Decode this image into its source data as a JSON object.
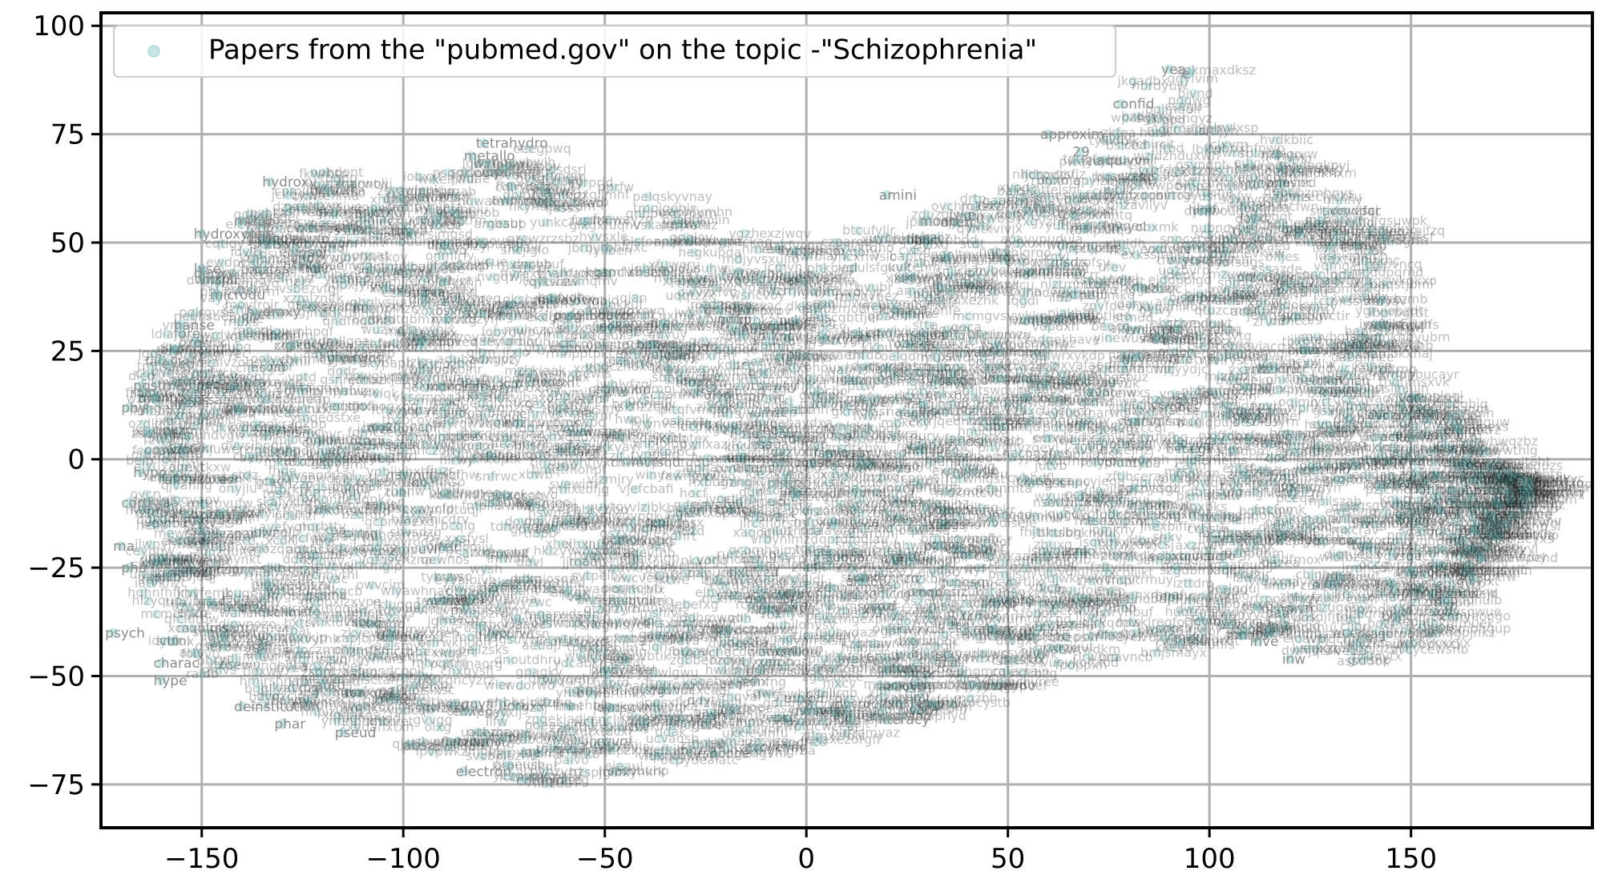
{
  "chart_data": {
    "type": "scatter",
    "title": "",
    "xlabel": "",
    "ylabel": "",
    "xlim": [
      -175,
      195
    ],
    "ylim": [
      -85,
      103
    ],
    "grid": true,
    "legend_position": "top-left",
    "x_ticks": [
      -150,
      -100,
      -50,
      0,
      50,
      100,
      150
    ],
    "x_tick_labels": [
      "−150",
      "−100",
      "−50",
      "0",
      "50",
      "100",
      "150"
    ],
    "y_ticks": [
      100,
      75,
      50,
      25,
      0,
      -25,
      -50,
      -75
    ],
    "y_tick_labels": [
      "100",
      "75",
      "50",
      "25",
      "0",
      "−25",
      "−50",
      "−75"
    ],
    "marker_color": "#5fb8b8",
    "grid_color": "#b0b0b0",
    "series": [
      {
        "name": "Papers from the \"pubmed.gov\" on the topic -\"Schizophrenia\"",
        "point_count_note": "dense cloud; representative labeled points below",
        "points": [
          {
            "x": -80,
            "y": 73,
            "label": "tetrahydro"
          },
          {
            "x": -83,
            "y": 70,
            "label": "metallo"
          },
          {
            "x": -75,
            "y": 67,
            "label": "hispan"
          },
          {
            "x": -133,
            "y": 64,
            "label": "hydroxy"
          },
          {
            "x": -140,
            "y": 55,
            "label": "misop"
          },
          {
            "x": -138,
            "y": 52,
            "label": "oleo"
          },
          {
            "x": -150,
            "y": 52,
            "label": "hydroxyphe"
          },
          {
            "x": -150,
            "y": 44,
            "label": "lyse"
          },
          {
            "x": -150,
            "y": 43,
            "label": "deoxy"
          },
          {
            "x": -146,
            "y": 38,
            "label": "microdu"
          },
          {
            "x": -137,
            "y": 34,
            "label": "hydroxy"
          },
          {
            "x": -155,
            "y": 31,
            "label": "hanse"
          },
          {
            "x": -155,
            "y": 29,
            "label": "fore"
          },
          {
            "x": -158,
            "y": 22,
            "label": "eyed"
          },
          {
            "x": -165,
            "y": 17,
            "label": "postma"
          },
          {
            "x": -168,
            "y": 12,
            "label": "phy"
          },
          {
            "x": -165,
            "y": -3,
            "label": "hypo"
          },
          {
            "x": -168,
            "y": -10,
            "label": "corti"
          },
          {
            "x": -170,
            "y": -20,
            "label": "ma"
          },
          {
            "x": -168,
            "y": -25,
            "label": "pha"
          },
          {
            "x": -172,
            "y": -40,
            "label": "psych"
          },
          {
            "x": -160,
            "y": -47,
            "label": "charac"
          },
          {
            "x": -160,
            "y": -51,
            "label": "hype"
          },
          {
            "x": -120,
            "y": -52,
            "label": "auto"
          },
          {
            "x": -140,
            "y": -57,
            "label": "deinstitution"
          },
          {
            "x": -130,
            "y": -61,
            "label": "phar"
          },
          {
            "x": -115,
            "y": -63,
            "label": "pseud"
          },
          {
            "x": -98,
            "y": -66,
            "label": "absa"
          },
          {
            "x": -85,
            "y": -72,
            "label": "electron"
          },
          {
            "x": -70,
            "y": -74,
            "label": "comm"
          },
          {
            "x": 20,
            "y": 61,
            "label": "amini"
          },
          {
            "x": 30,
            "y": 55,
            "label": "mono"
          },
          {
            "x": 60,
            "y": 75,
            "label": "approxim"
          },
          {
            "x": 68,
            "y": 71,
            "label": "29"
          },
          {
            "x": 74,
            "y": 69,
            "label": "aqu"
          },
          {
            "x": 78,
            "y": 82,
            "label": "confid"
          },
          {
            "x": 90,
            "y": 90,
            "label": "yea"
          },
          {
            "x": 95,
            "y": 89,
            "label": "e"
          },
          {
            "x": 20,
            "y": -60,
            "label": "literacy"
          },
          {
            "x": 112,
            "y": -42,
            "label": "inve"
          },
          {
            "x": 120,
            "y": -46,
            "label": "inw"
          },
          {
            "x": 178,
            "y": -5,
            "label": "al"
          },
          {
            "x": 160,
            "y": 10,
            "label": "ve"
          }
        ]
      }
    ]
  }
}
